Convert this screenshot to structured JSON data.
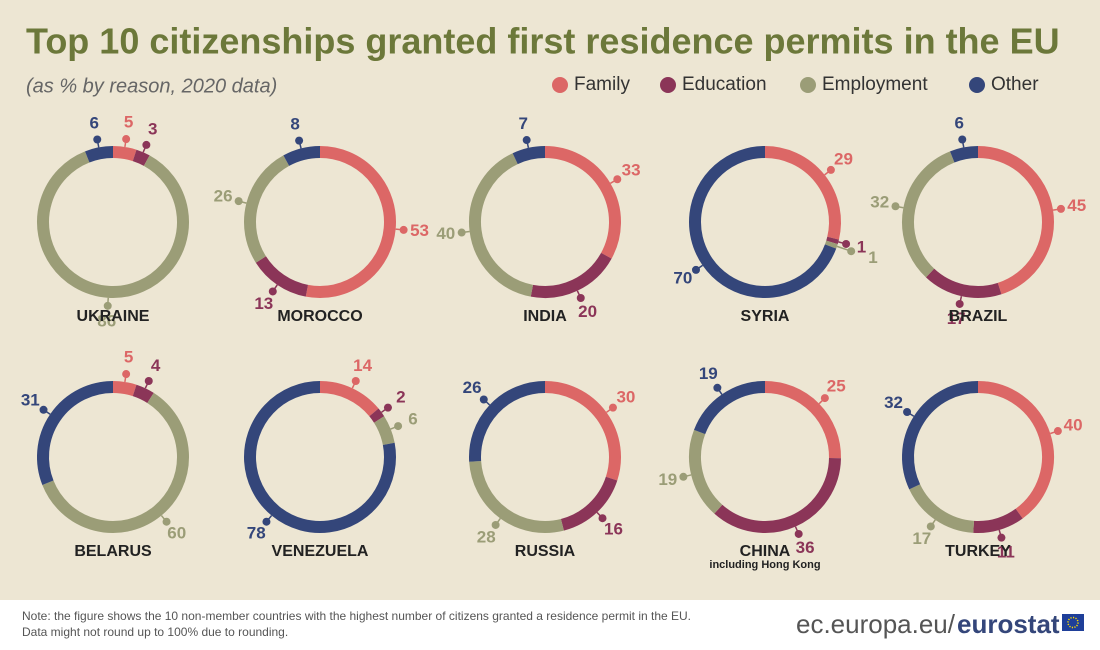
{
  "title": "Top 10 citizenships granted first residence permits in the EU",
  "subtitle": "(as % by reason, 2020 data)",
  "legend": [
    {
      "name": "Family",
      "color": "#dc6766"
    },
    {
      "name": "Education",
      "color": "#8b3558"
    },
    {
      "name": "Employment",
      "color": "#9b9d77"
    },
    {
      "name": "Other",
      "color": "#34467a"
    }
  ],
  "chart_data": [
    {
      "type": "donut",
      "title": "UKRAINE",
      "values": [
        5,
        3,
        86,
        6
      ]
    },
    {
      "type": "donut",
      "title": "MOROCCO",
      "values": [
        53,
        13,
        26,
        8
      ]
    },
    {
      "type": "donut",
      "title": "INDIA",
      "values": [
        33,
        20,
        40,
        7
      ]
    },
    {
      "type": "donut",
      "title": "SYRIA",
      "values": [
        29,
        1,
        1,
        70
      ]
    },
    {
      "type": "donut",
      "title": "BRAZIL",
      "values": [
        45,
        17,
        32,
        6
      ]
    },
    {
      "type": "donut",
      "title": "BELARUS",
      "values": [
        5,
        4,
        60,
        31
      ]
    },
    {
      "type": "donut",
      "title": "VENEZUELA",
      "values": [
        14,
        2,
        6,
        78
      ]
    },
    {
      "type": "donut",
      "title": "RUSSIA",
      "values": [
        30,
        16,
        28,
        26
      ]
    },
    {
      "type": "donut",
      "title": "CHINA",
      "subtitle": "including Hong Kong",
      "values": [
        25,
        36,
        19,
        19
      ]
    },
    {
      "type": "donut",
      "title": "TURKEY",
      "values": [
        40,
        11,
        17,
        32
      ]
    }
  ],
  "footer": {
    "note": [
      "Note: the figure shows the 10 non-member countries with the highest number of citizens granted a residence permit in the EU.",
      "Data might not round up to 100% due to rounding."
    ],
    "source": "ec.europa.eu/",
    "brand": "eurostat"
  }
}
